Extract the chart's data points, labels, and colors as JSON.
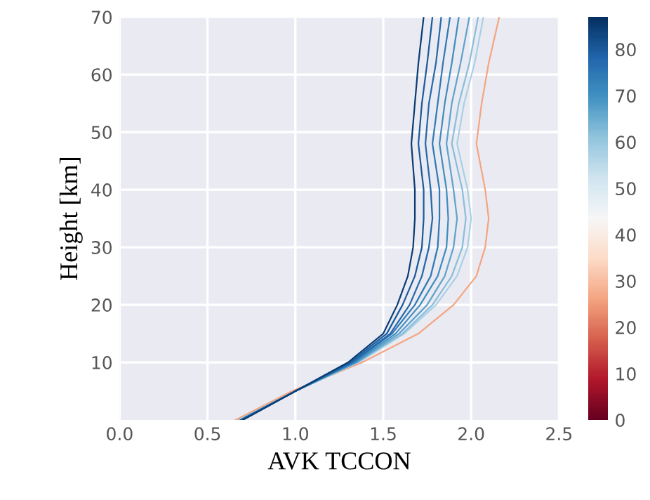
{
  "chart_data": {
    "type": "line",
    "xlabel": "AVK TCCON",
    "ylabel": "Height [km]",
    "xlim": [
      0,
      2.5
    ],
    "xticks": [
      {
        "value": 0,
        "label": "0.0"
      },
      0.5,
      {
        "value": 1,
        "label": "1.0"
      },
      1.5,
      {
        "value": 2,
        "label": "2.0"
      },
      2.5
    ],
    "ylim": [
      0,
      70
    ],
    "yticks": [
      10,
      20,
      30,
      40,
      50,
      60,
      70
    ],
    "grid": true,
    "marker": "none",
    "line_style": "solid",
    "clim": [
      0,
      87
    ],
    "cticks": [
      0,
      10,
      20,
      30,
      40,
      50,
      60,
      70,
      80
    ],
    "series": [
      {
        "color": "#f4a582",
        "x": [
          0.66,
          0.98,
          1.38,
          1.7,
          1.9,
          2.03,
          2.08,
          2.1,
          2.08,
          2.03,
          2.06,
          2.1,
          2.16
        ],
        "values": [
          0,
          5,
          10,
          15,
          20,
          25,
          30,
          35,
          40,
          48,
          55,
          62,
          70
        ]
      },
      {
        "color": "#a9d0e5",
        "x": [
          0.68,
          1.0,
          1.36,
          1.62,
          1.8,
          1.92,
          1.98,
          2.0,
          1.98,
          1.92,
          1.96,
          2.02,
          2.07
        ],
        "values": [
          0,
          5,
          10,
          15,
          20,
          25,
          30,
          35,
          40,
          48,
          55,
          62,
          70
        ]
      },
      {
        "color": "#87bedb",
        "x": [
          0.68,
          1.0,
          1.35,
          1.61,
          1.78,
          1.89,
          1.95,
          1.97,
          1.95,
          1.89,
          1.93,
          1.99,
          2.04
        ],
        "values": [
          0,
          5,
          10,
          15,
          20,
          25,
          30,
          35,
          40,
          48,
          55,
          62,
          70
        ]
      },
      {
        "color": "#5fa3cb",
        "x": [
          0.69,
          1.0,
          1.35,
          1.59,
          1.75,
          1.85,
          1.9,
          1.92,
          1.9,
          1.86,
          1.89,
          1.94,
          1.99
        ],
        "values": [
          0,
          5,
          10,
          15,
          20,
          25,
          30,
          35,
          40,
          48,
          55,
          62,
          70
        ]
      },
      {
        "color": "#3f8ec0",
        "x": [
          0.69,
          1.0,
          1.34,
          1.57,
          1.71,
          1.81,
          1.86,
          1.87,
          1.86,
          1.82,
          1.85,
          1.89,
          1.93
        ],
        "values": [
          0,
          5,
          10,
          15,
          20,
          25,
          30,
          35,
          40,
          48,
          55,
          62,
          70
        ]
      },
      {
        "color": "#2f79b5",
        "x": [
          0.69,
          1.0,
          1.33,
          1.55,
          1.68,
          1.77,
          1.81,
          1.82,
          1.82,
          1.78,
          1.81,
          1.84,
          1.88
        ],
        "values": [
          0,
          5,
          10,
          15,
          20,
          25,
          30,
          35,
          40,
          48,
          55,
          62,
          70
        ]
      },
      {
        "color": "#2369aa",
        "x": [
          0.69,
          1.0,
          1.32,
          1.54,
          1.65,
          1.72,
          1.76,
          1.78,
          1.77,
          1.74,
          1.76,
          1.8,
          1.83
        ],
        "values": [
          0,
          5,
          10,
          15,
          20,
          25,
          30,
          35,
          40,
          48,
          55,
          62,
          70
        ]
      },
      {
        "color": "#195b9c",
        "x": [
          0.7,
          1.0,
          1.31,
          1.52,
          1.61,
          1.68,
          1.72,
          1.73,
          1.73,
          1.7,
          1.72,
          1.75,
          1.78
        ],
        "values": [
          0,
          5,
          10,
          15,
          20,
          25,
          30,
          35,
          40,
          48,
          55,
          62,
          70
        ]
      },
      {
        "color": "#0b3d74",
        "x": [
          0.7,
          1.0,
          1.3,
          1.5,
          1.58,
          1.64,
          1.67,
          1.68,
          1.68,
          1.66,
          1.68,
          1.7,
          1.73
        ],
        "values": [
          0,
          5,
          10,
          15,
          20,
          25,
          30,
          35,
          40,
          48,
          55,
          62,
          70
        ]
      }
    ]
  }
}
